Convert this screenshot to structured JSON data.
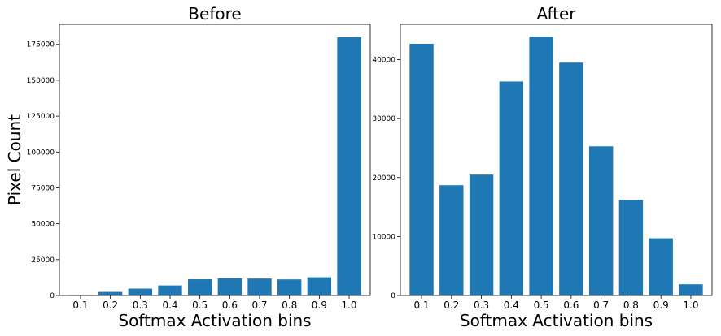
{
  "chart_data": [
    {
      "type": "bar",
      "title": "Before",
      "xlabel": "Softmax Activation bins",
      "ylabel": "Pixel Count",
      "categories": [
        "0.1",
        "0.2",
        "0.3",
        "0.4",
        "0.5",
        "0.6",
        "0.7",
        "0.8",
        "0.9",
        "1.0"
      ],
      "values": [
        300,
        2500,
        4800,
        7000,
        11300,
        12000,
        11800,
        11200,
        12700,
        180000
      ],
      "ylim": [
        0,
        189000
      ],
      "yticks": [
        0,
        25000,
        50000,
        75000,
        100000,
        125000,
        150000,
        175000
      ],
      "ytick_labels": [
        "0",
        "25000",
        "50000",
        "75000",
        "100000",
        "125000",
        "150000",
        "175000"
      ],
      "color": "#1f77b4",
      "grid": false
    },
    {
      "type": "bar",
      "title": "After",
      "xlabel": "Softmax Activation bins",
      "ylabel": "",
      "categories": [
        "0.1",
        "0.2",
        "0.3",
        "0.4",
        "0.5",
        "0.6",
        "0.7",
        "0.8",
        "0.9",
        "1.0"
      ],
      "values": [
        42700,
        18700,
        20500,
        36300,
        43900,
        39500,
        25300,
        16200,
        9700,
        1900
      ],
      "ylim": [
        0,
        46000
      ],
      "yticks": [
        0,
        10000,
        20000,
        30000,
        40000
      ],
      "ytick_labels": [
        "0",
        "10000",
        "20000",
        "30000",
        "40000"
      ],
      "color": "#1f77b4",
      "grid": false
    }
  ]
}
